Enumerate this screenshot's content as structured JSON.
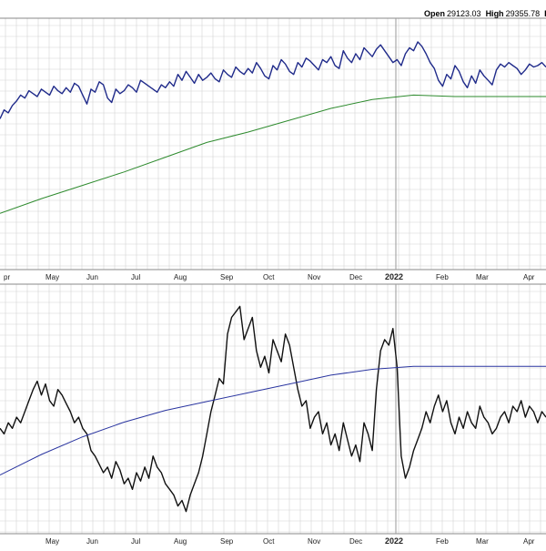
{
  "header": {
    "open_label": "Open",
    "open_value": "29123.03",
    "high_label": "High",
    "high_value": "29355.78",
    "low_label_partial": "Lo"
  },
  "colors": {
    "price_line": "#1f2a8a",
    "ma_top": "#2e8b2e",
    "ratio_line": "#111111",
    "ma_bottom": "#2a35a0",
    "grid": "#d4d4d4",
    "panel_border": "#888888",
    "grid_major": "#9a9a9a"
  },
  "chart_data": [
    {
      "type": "line",
      "panel": "top",
      "grid": true,
      "x_ticks": [
        "pr",
        "May",
        "Jun",
        "Jul",
        "Aug",
        "Sep",
        "Oct",
        "Nov",
        "Dec",
        "2022",
        "Feb",
        "Mar",
        "Apr"
      ],
      "major_tick": "2022",
      "series": [
        {
          "role": "price",
          "color": "#1f2a8a",
          "x": [
            0,
            2,
            4,
            6,
            8,
            10,
            12,
            14,
            16,
            18,
            20,
            22,
            24,
            26,
            28,
            30,
            32,
            34,
            36,
            38,
            40,
            42,
            44,
            46,
            48,
            50,
            52,
            54,
            56,
            58,
            60,
            62,
            64,
            66,
            68,
            70,
            72,
            74,
            76,
            78,
            80,
            82,
            84,
            86,
            88,
            90,
            92,
            94,
            96,
            98,
            100,
            102,
            104,
            106,
            108,
            110,
            112,
            114,
            116,
            118,
            120,
            122,
            124,
            126,
            128,
            130,
            132,
            134,
            136,
            138,
            140,
            142,
            144,
            146,
            148,
            150,
            152,
            154,
            156,
            158,
            160,
            162,
            164,
            166,
            168,
            170,
            172,
            174,
            176,
            178,
            180,
            182,
            184,
            186,
            188,
            190,
            192,
            194,
            196,
            198,
            200,
            202,
            204,
            206,
            208,
            210,
            212,
            214,
            216,
            218,
            220,
            222,
            224,
            226,
            228,
            230,
            232,
            234,
            236,
            238,
            240,
            242,
            244,
            246,
            248,
            250,
            252,
            254,
            256,
            258,
            260,
            262,
            264
          ],
          "values": [
            22,
            28,
            26,
            31,
            34,
            38,
            36,
            41,
            39,
            37,
            42,
            40,
            38,
            44,
            41,
            39,
            43,
            40,
            46,
            44,
            38,
            32,
            42,
            40,
            47,
            45,
            36,
            33,
            42,
            39,
            41,
            45,
            43,
            40,
            48,
            46,
            44,
            42,
            40,
            45,
            43,
            47,
            44,
            52,
            48,
            54,
            50,
            46,
            52,
            48,
            50,
            53,
            49,
            47,
            55,
            52,
            50,
            57,
            54,
            52,
            56,
            53,
            60,
            56,
            51,
            49,
            58,
            55,
            62,
            59,
            54,
            52,
            60,
            57,
            63,
            61,
            58,
            55,
            62,
            60,
            64,
            58,
            56,
            68,
            63,
            60,
            66,
            62,
            70,
            67,
            64,
            69,
            72,
            68,
            64,
            60,
            62,
            58,
            66,
            70,
            68,
            74,
            71,
            66,
            60,
            56,
            48,
            44,
            52,
            49,
            58,
            54,
            47,
            43,
            51,
            46,
            55,
            51,
            48,
            45,
            55,
            59,
            57,
            60,
            58,
            56,
            52,
            55,
            59,
            57,
            58,
            60,
            57
          ]
        },
        {
          "role": "moving-average",
          "color": "#2e8b2e",
          "x": [
            0,
            20,
            40,
            60,
            80,
            100,
            120,
            140,
            160,
            180,
            200,
            220,
            240,
            264
          ],
          "values": [
            -42,
            -32,
            -23,
            -14,
            -4,
            6,
            13,
            21,
            29,
            35,
            38,
            37,
            37,
            37
          ]
        }
      ],
      "ylim": [
        -80,
        90
      ]
    },
    {
      "type": "line",
      "panel": "bottom",
      "grid": true,
      "x_ticks": [
        "May",
        "Jun",
        "Jul",
        "Aug",
        "Sep",
        "Oct",
        "Nov",
        "Dec",
        "2022",
        "Feb",
        "Mar",
        "Apr"
      ],
      "major_tick": "2022",
      "series": [
        {
          "role": "ratio",
          "color": "#111111",
          "x": [
            0,
            2,
            4,
            6,
            8,
            10,
            12,
            14,
            16,
            18,
            20,
            22,
            24,
            26,
            28,
            30,
            32,
            34,
            36,
            38,
            40,
            42,
            44,
            46,
            48,
            50,
            52,
            54,
            56,
            58,
            60,
            62,
            64,
            66,
            68,
            70,
            72,
            74,
            76,
            78,
            80,
            82,
            84,
            86,
            88,
            90,
            92,
            94,
            96,
            98,
            100,
            102,
            104,
            106,
            108,
            110,
            112,
            114,
            116,
            118,
            120,
            122,
            124,
            126,
            128,
            130,
            132,
            134,
            136,
            138,
            140,
            142,
            144,
            146,
            148,
            150,
            152,
            154,
            156,
            158,
            160,
            162,
            164,
            166,
            168,
            170,
            172,
            174,
            176,
            178,
            180,
            182,
            184,
            186,
            188,
            190,
            192,
            194,
            196,
            198,
            200,
            202,
            204,
            206,
            208,
            210,
            212,
            214,
            216,
            218,
            220,
            222,
            224,
            226,
            228,
            230,
            232,
            234,
            236,
            238,
            240,
            242,
            244,
            246,
            248,
            250,
            252,
            254,
            256,
            258,
            260,
            262,
            264
          ],
          "values": [
            38,
            36,
            40,
            38,
            42,
            40,
            44,
            48,
            52,
            55,
            50,
            54,
            48,
            46,
            52,
            50,
            47,
            44,
            40,
            42,
            38,
            36,
            30,
            28,
            25,
            22,
            24,
            20,
            26,
            23,
            18,
            20,
            16,
            22,
            19,
            24,
            20,
            28,
            24,
            22,
            18,
            16,
            14,
            10,
            12,
            8,
            14,
            18,
            22,
            28,
            36,
            44,
            50,
            56,
            54,
            72,
            78,
            80,
            82,
            70,
            74,
            78,
            66,
            60,
            64,
            58,
            70,
            66,
            62,
            72,
            68,
            60,
            52,
            46,
            48,
            38,
            42,
            44,
            36,
            40,
            32,
            36,
            30,
            40,
            34,
            28,
            32,
            26,
            40,
            36,
            30,
            52,
            66,
            70,
            68,
            74,
            60,
            28,
            20,
            24,
            30,
            34,
            38,
            44,
            40,
            46,
            50,
            44,
            48,
            40,
            36,
            42,
            38,
            44,
            40,
            38,
            46,
            42,
            40,
            36,
            38,
            42,
            44,
            40,
            46,
            44,
            48,
            42,
            46,
            44,
            40,
            44,
            42
          ],
          "ylim": [
            0,
            90
          ]
        },
        {
          "role": "moving-average",
          "color": "#2a35a0",
          "x": [
            0,
            20,
            40,
            60,
            80,
            100,
            120,
            140,
            160,
            180,
            200,
            220,
            240,
            264
          ],
          "values": [
            -40,
            -26,
            -14,
            -4,
            4,
            10,
            16,
            22,
            28,
            32,
            34,
            34,
            34,
            34
          ]
        }
      ],
      "ylim": [
        -80,
        90
      ]
    }
  ]
}
